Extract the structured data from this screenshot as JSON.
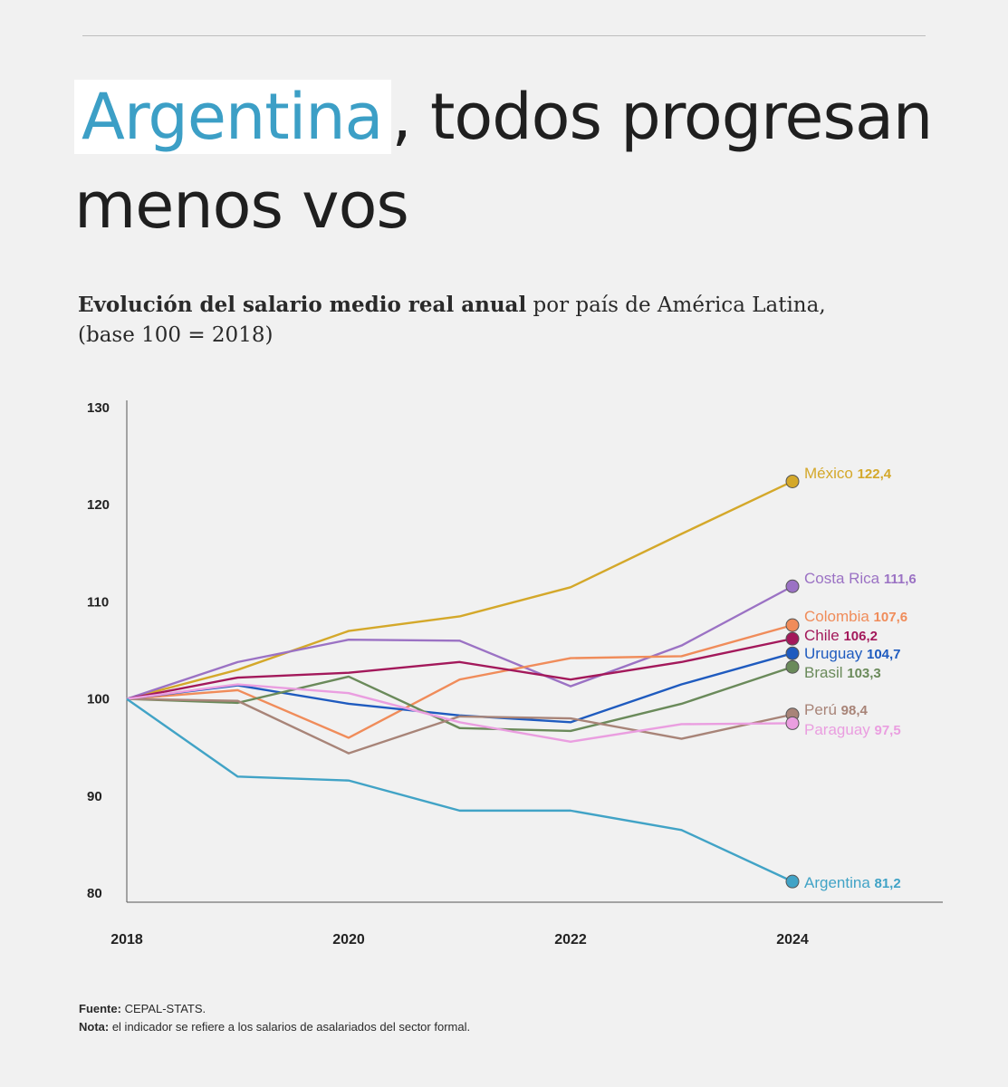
{
  "header": {
    "title_highlight": "Argentina",
    "title_rest": ", todos progresan menos vos"
  },
  "subtitle": {
    "bold": "Evolución del salario medio real anual",
    "rest": " por país de América Latina,",
    "line2": "(base 100 = 2018)"
  },
  "footer": {
    "source_label": "Fuente:",
    "source_text": " CEPAL-STATS.",
    "note_label": "Nota:",
    "note_text": " el indicador se refiere a los salarios de asalariados del sector formal."
  },
  "chart_data": {
    "type": "line",
    "x": [
      2018,
      2019,
      2020,
      2021,
      2022,
      2023,
      2024
    ],
    "x_tick_labels": [
      "2018",
      "2020",
      "2022",
      "2024"
    ],
    "ylim": [
      80,
      130
    ],
    "y_ticks": [
      80,
      90,
      100,
      110,
      120,
      130
    ],
    "grid": false,
    "series": [
      {
        "name": "México",
        "value_label": "122,4",
        "color": "#d4a82a",
        "values": [
          100,
          103.0,
          107.0,
          108.5,
          111.5,
          117.0,
          122.4
        ]
      },
      {
        "name": "Costa Rica",
        "value_label": "111,6",
        "color": "#9b72c4",
        "values": [
          100,
          103.8,
          106.1,
          106.0,
          101.3,
          105.5,
          111.6
        ]
      },
      {
        "name": "Colombia",
        "value_label": "107,6",
        "color": "#f08c5a",
        "values": [
          100,
          100.9,
          96.0,
          102.0,
          104.2,
          104.4,
          107.6
        ]
      },
      {
        "name": "Chile",
        "value_label": "106,2",
        "color": "#a3195b",
        "values": [
          100,
          102.2,
          102.7,
          103.8,
          102.0,
          103.8,
          106.2
        ]
      },
      {
        "name": "Uruguay",
        "value_label": "104,7",
        "color": "#1f5bbf",
        "values": [
          100,
          101.4,
          99.5,
          98.3,
          97.6,
          101.5,
          104.7
        ]
      },
      {
        "name": "Brasil",
        "value_label": "103,3",
        "color": "#6a8a5a",
        "values": [
          100,
          99.6,
          102.3,
          97.0,
          96.7,
          99.5,
          103.3
        ]
      },
      {
        "name": "Perú",
        "value_label": "98,4",
        "color": "#a88478",
        "values": [
          100,
          99.8,
          94.4,
          98.2,
          98.0,
          95.9,
          98.4
        ]
      },
      {
        "name": "Paraguay",
        "value_label": "97,5",
        "color": "#ea9ee0",
        "values": [
          100,
          101.5,
          100.6,
          97.6,
          95.6,
          97.4,
          97.5
        ]
      },
      {
        "name": "Argentina",
        "value_label": "81,2",
        "color": "#41a3c6",
        "values": [
          100,
          92.0,
          91.6,
          88.5,
          88.5,
          86.5,
          81.2
        ]
      }
    ]
  }
}
